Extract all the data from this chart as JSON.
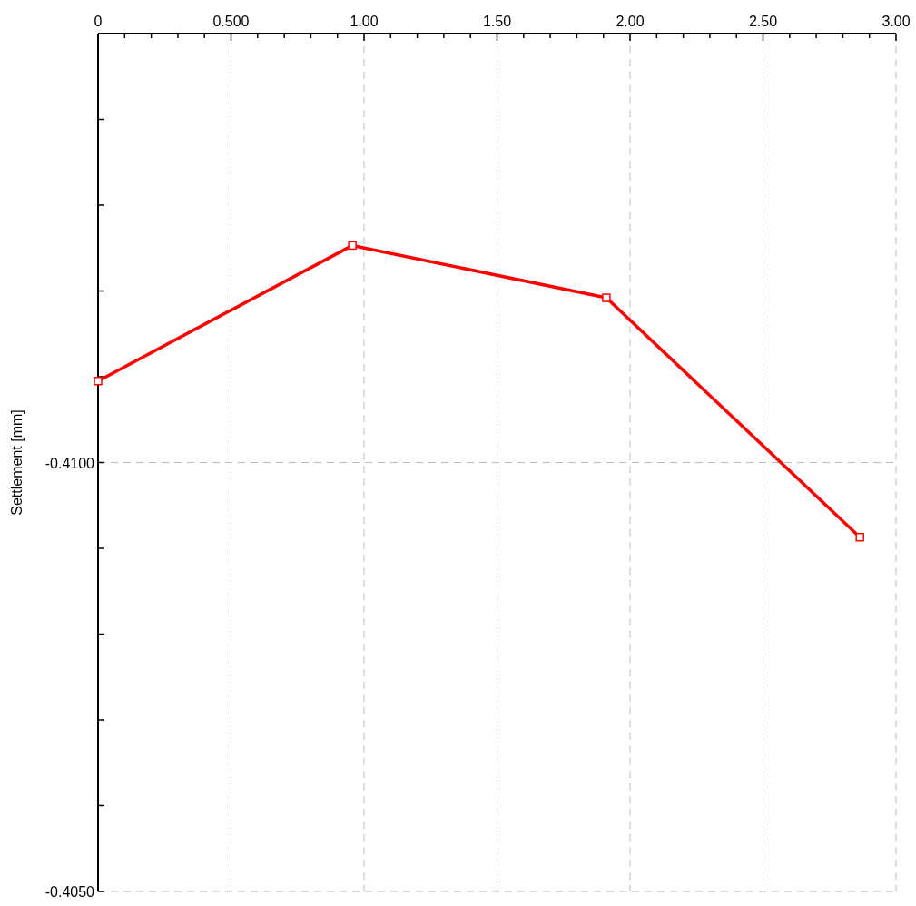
{
  "chart_data": {
    "type": "line",
    "ylabel": "Settlement [mm]",
    "x": [
      0,
      0.956,
      1.911,
      2.864
    ],
    "series": [
      {
        "color": "#ff0000",
        "values": [
          -0.41095,
          -0.41253,
          -0.41192,
          -0.40913
        ]
      }
    ],
    "xlim": [
      0,
      3
    ],
    "xticks": [
      0,
      {
        "value": 0.1,
        "label": null
      },
      {
        "value": 0.2,
        "label": null
      },
      {
        "value": 0.3,
        "label": null
      },
      {
        "value": 0.4,
        "label": null
      },
      {
        "value": 0.5,
        "label": "0.500"
      },
      {
        "value": 0.6,
        "label": null
      },
      {
        "value": 0.7,
        "label": null
      },
      {
        "value": 0.8,
        "label": null
      },
      {
        "value": 0.9,
        "label": null
      },
      {
        "value": 1,
        "label": "1.00"
      },
      {
        "value": 1.1,
        "label": null
      },
      {
        "value": 1.2,
        "label": null
      },
      {
        "value": 1.3,
        "label": null
      },
      {
        "value": 1.4,
        "label": null
      },
      {
        "value": 1.5,
        "label": "1.50"
      },
      {
        "value": 1.6,
        "label": null
      },
      {
        "value": 1.7,
        "label": null
      },
      {
        "value": 1.8,
        "label": null
      },
      {
        "value": 1.9,
        "label": null
      },
      {
        "value": 2,
        "label": "2.00"
      },
      {
        "value": 2.1,
        "label": null
      },
      {
        "value": 2.2,
        "label": null
      },
      {
        "value": 2.3,
        "label": null
      },
      {
        "value": 2.4,
        "label": null
      },
      {
        "value": 2.5,
        "label": "2.50"
      },
      {
        "value": 2.6,
        "label": null
      },
      {
        "value": 2.7,
        "label": null
      },
      {
        "value": 2.8,
        "label": null
      },
      {
        "value": 2.9,
        "label": null
      },
      {
        "value": 3,
        "label": "3.00"
      }
    ],
    "ylim": [
      -0.405,
      -0.415
    ],
    "yticks": [
      {
        "value": -0.415,
        "label": null
      },
      {
        "value": -0.414,
        "label": null
      },
      {
        "value": -0.413,
        "label": null
      },
      {
        "value": -0.412,
        "label": null
      },
      {
        "value": -0.411,
        "label": null
      },
      {
        "value": -0.41,
        "label": "-0.4100"
      },
      {
        "value": -0.409,
        "label": null
      },
      {
        "value": -0.408,
        "label": null
      },
      {
        "value": -0.407,
        "label": null
      },
      {
        "value": -0.406,
        "label": null
      },
      {
        "value": -0.405,
        "label": "-0.4050"
      }
    ],
    "grid": true,
    "marker": "square",
    "line_style": "solid"
  }
}
